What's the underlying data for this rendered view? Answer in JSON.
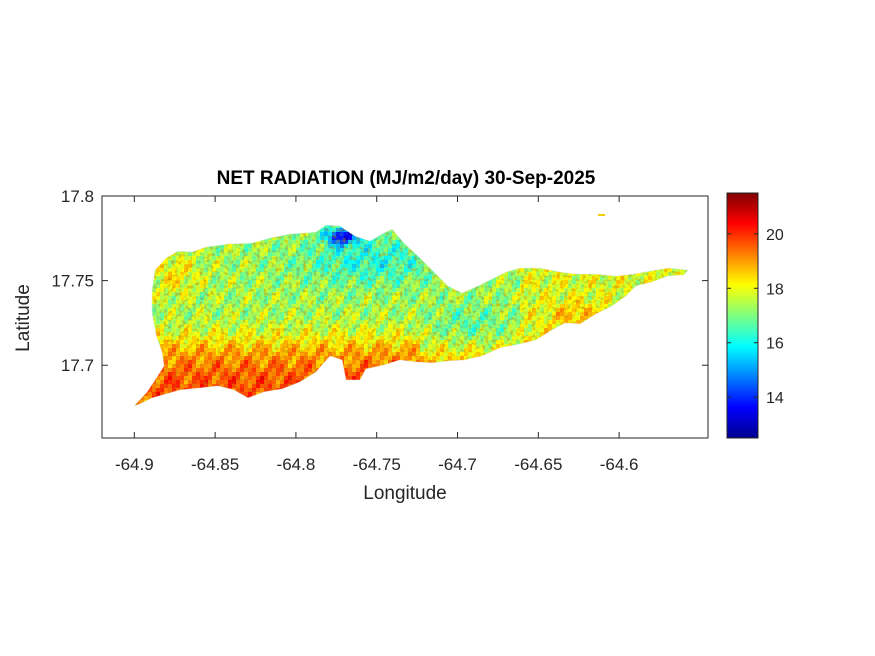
{
  "title": "NET RADIATION (MJ/m2/day) 30-Sep-2025",
  "xlabel": "Longitude",
  "ylabel": "Latitude",
  "x_ticks": [
    "-64.9",
    "-64.85",
    "-64.8",
    "-64.75",
    "-64.7",
    "-64.65",
    "-64.6"
  ],
  "y_ticks": [
    "17.8",
    "17.75",
    "17.7"
  ],
  "colorbar": {
    "colormap": "jet",
    "ticks": [
      "14",
      "16",
      "18",
      "20"
    ],
    "range": [
      12.5,
      21.5
    ]
  },
  "map_data": {
    "type": "heatmap",
    "variable": "net radiation",
    "units": "MJ/m2/day",
    "date": "30-Sep-2025",
    "xlim": [
      -64.92,
      -64.545
    ],
    "ylim": [
      17.657,
      17.8
    ],
    "value_range_shown": [
      12.5,
      21.5
    ],
    "regions": [
      {
        "area": "north-central coast",
        "approx_value": 13.5
      },
      {
        "area": "north-central interior",
        "approx_value": 16.5
      },
      {
        "area": "west",
        "approx_value": 17.5
      },
      {
        "area": "south-west coast",
        "approx_value": 19.5
      },
      {
        "area": "east",
        "approx_value": 18.0
      }
    ]
  }
}
